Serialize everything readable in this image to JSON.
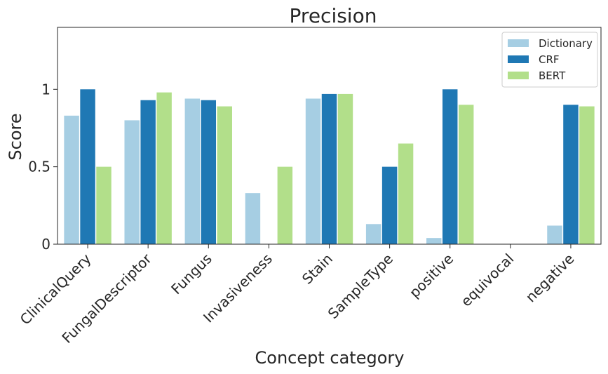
{
  "chart_data": {
    "type": "bar",
    "title": "Precision",
    "xlabel": "Concept category",
    "ylabel": "Score",
    "ylim": [
      0,
      1.4
    ],
    "yticks": [
      {
        "value": 0,
        "label": "0"
      },
      {
        "value": 0.5,
        "label": "0.5"
      },
      {
        "value": 1,
        "label": "1"
      }
    ],
    "categories": [
      "ClinicalQuery",
      "FungalDescriptor",
      "Fungus",
      "Invasiveness",
      "Stain",
      "SampleType",
      "positive",
      "equivocal",
      "negative"
    ],
    "series": [
      {
        "name": "Dictionary",
        "color": "#a6cee3",
        "values": [
          0.83,
          0.8,
          0.94,
          0.33,
          0.94,
          0.13,
          0.04,
          0,
          0.12
        ]
      },
      {
        "name": "CRF",
        "color": "#1f78b4",
        "values": [
          1.0,
          0.93,
          0.93,
          0,
          0.97,
          0.5,
          1.0,
          0,
          0.9
        ]
      },
      {
        "name": "BERT",
        "color": "#b2df8a",
        "values": [
          0.5,
          0.98,
          0.89,
          0.5,
          0.97,
          0.65,
          0.9,
          0,
          0.89
        ]
      }
    ],
    "grid": false,
    "legend_position": "top-right"
  }
}
